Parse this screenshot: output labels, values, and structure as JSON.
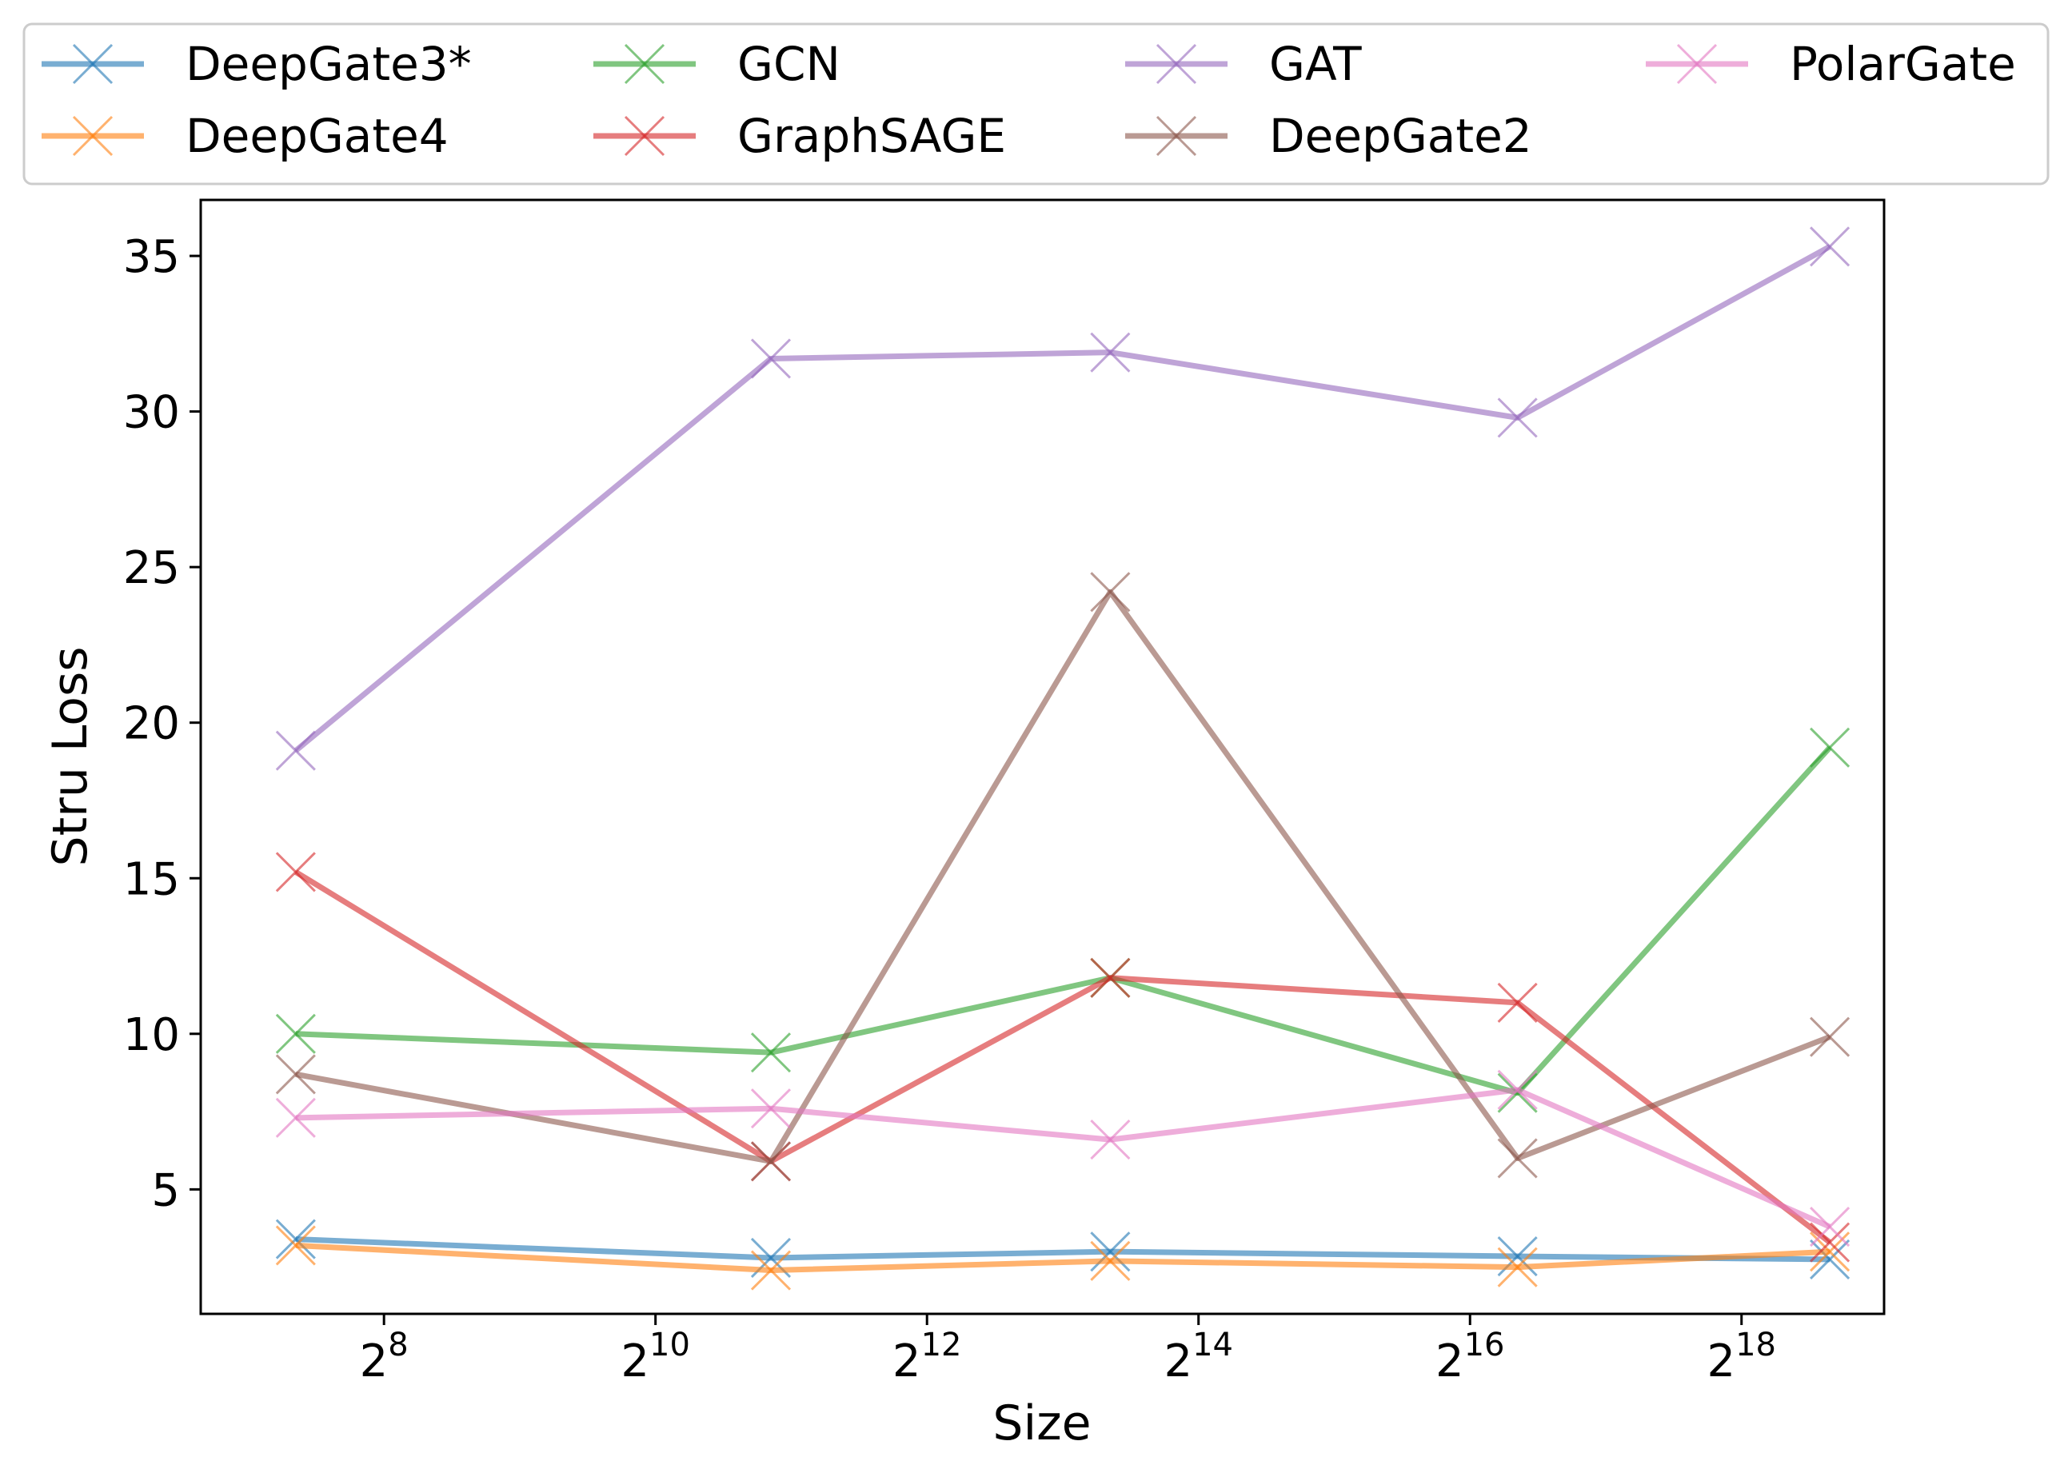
{
  "chart_data": {
    "type": "line",
    "title": "",
    "xlabel": "Size",
    "ylabel": "Stru Loss",
    "x_scale": "log2",
    "x_exponents": [
      7.35,
      10.85,
      13.35,
      16.35,
      18.65
    ],
    "xlim_exponent": [
      6.65,
      19.05
    ],
    "ylim": [
      1,
      36.8
    ],
    "x_ticks": [
      {
        "exp": 8,
        "base": "2",
        "sup": "8"
      },
      {
        "exp": 10,
        "base": "2",
        "sup": "10"
      },
      {
        "exp": 12,
        "base": "2",
        "sup": "12"
      },
      {
        "exp": 14,
        "base": "2",
        "sup": "14"
      },
      {
        "exp": 16,
        "base": "2",
        "sup": "16"
      },
      {
        "exp": 18,
        "base": "2",
        "sup": "18"
      }
    ],
    "y_ticks": [
      5,
      10,
      15,
      20,
      25,
      30,
      35
    ],
    "grid": false,
    "legend_position": "top",
    "marker": "x",
    "series": [
      {
        "name": "DeepGate3*",
        "color": "#1f77b4",
        "values": [
          3.4,
          2.8,
          3.0,
          2.85,
          2.75
        ]
      },
      {
        "name": "DeepGate4",
        "color": "#ff7f0e",
        "values": [
          3.2,
          2.4,
          2.7,
          2.5,
          3.0
        ]
      },
      {
        "name": "GCN",
        "color": "#2ca02c",
        "values": [
          10.0,
          9.4,
          11.8,
          8.1,
          19.2
        ]
      },
      {
        "name": "GraphSAGE",
        "color": "#d62728",
        "values": [
          15.2,
          5.9,
          11.8,
          11.0,
          3.3
        ]
      },
      {
        "name": "GAT",
        "color": "#9467bd",
        "values": [
          19.1,
          31.7,
          31.9,
          29.8,
          35.3
        ]
      },
      {
        "name": "DeepGate2",
        "color": "#8c564b",
        "values": [
          8.7,
          5.9,
          24.2,
          6.0,
          9.9
        ]
      },
      {
        "name": "PolarGate",
        "color": "#e377c2",
        "values": [
          7.3,
          7.6,
          6.6,
          8.2,
          3.8
        ]
      }
    ]
  }
}
